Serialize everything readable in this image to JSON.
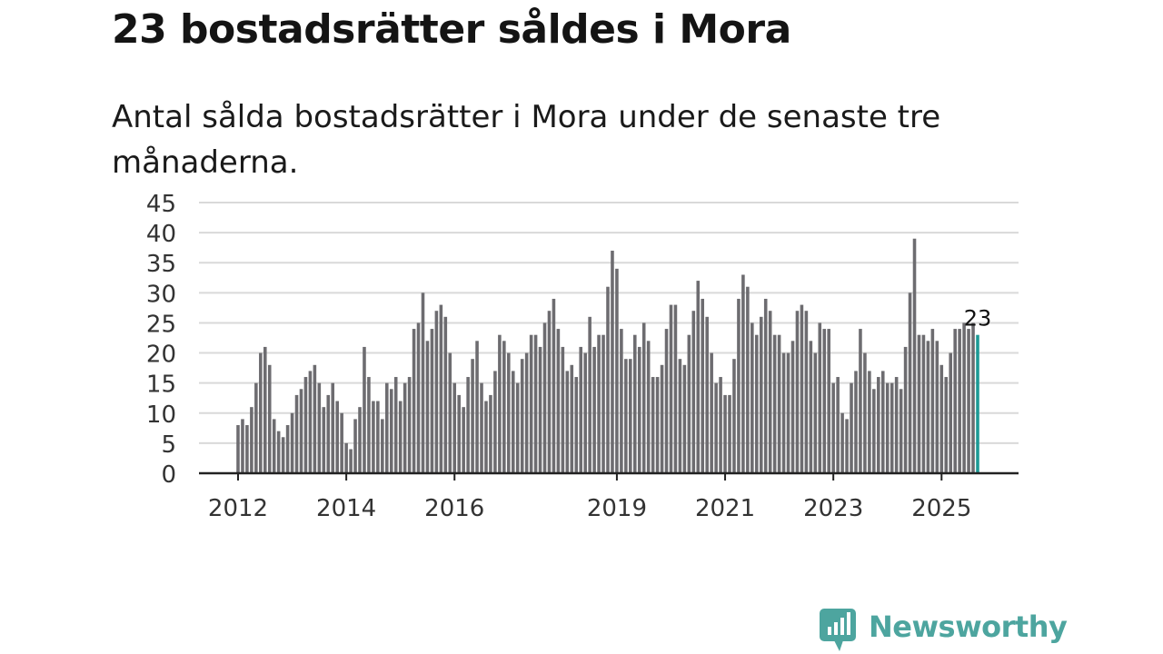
{
  "header": {
    "title": "23 bostadsrätter såldes i Mora",
    "subtitle": "Antal sålda bostadsrätter i Mora under de senaste tre månaderna."
  },
  "colors": {
    "bar": "#6d6c70",
    "highlight": "#1c9a96",
    "grid": "#d9d9d9",
    "axis": "#222222",
    "brand": "#4da59f"
  },
  "chart_data": {
    "type": "bar",
    "title": "23 bostadsrätter såldes i Mora",
    "subtitle": "Antal sålda bostadsrätter i Mora under de senaste tre månaderna.",
    "xlabel": "",
    "ylabel": "",
    "ylim": [
      0,
      45
    ],
    "yticks": [
      "0",
      "5",
      "10",
      "15",
      "20",
      "25",
      "30",
      "35",
      "40",
      "45"
    ],
    "grid": true,
    "x_start": "2012-01",
    "frequency": "monthly",
    "xticks": [
      {
        "label": "2012",
        "index": 0
      },
      {
        "label": "2014",
        "index": 24
      },
      {
        "label": "2016",
        "index": 48
      },
      {
        "label": "2019",
        "index": 84
      },
      {
        "label": "2021",
        "index": 108
      },
      {
        "label": "2023",
        "index": 132
      },
      {
        "label": "2025",
        "index": 156
      }
    ],
    "highlight_label": "23",
    "values": [
      8,
      9,
      8,
      11,
      15,
      20,
      21,
      18,
      9,
      7,
      6,
      8,
      10,
      13,
      14,
      16,
      17,
      18,
      15,
      11,
      13,
      15,
      12,
      10,
      5,
      4,
      9,
      11,
      21,
      16,
      12,
      12,
      9,
      15,
      14,
      16,
      12,
      15,
      16,
      24,
      25,
      30,
      22,
      24,
      27,
      28,
      26,
      20,
      15,
      13,
      11,
      16,
      19,
      22,
      15,
      12,
      13,
      17,
      23,
      22,
      20,
      17,
      15,
      19,
      20,
      23,
      23,
      21,
      25,
      27,
      29,
      24,
      21,
      17,
      18,
      16,
      21,
      20,
      26,
      21,
      23,
      23,
      31,
      37,
      34,
      24,
      19,
      19,
      23,
      21,
      25,
      22,
      16,
      16,
      18,
      24,
      28,
      28,
      19,
      18,
      23,
      27,
      32,
      29,
      26,
      20,
      15,
      16,
      13,
      13,
      19,
      29,
      33,
      31,
      25,
      23,
      26,
      29,
      27,
      23,
      23,
      20,
      20,
      22,
      27,
      28,
      27,
      22,
      20,
      25,
      24,
      24,
      15,
      16,
      10,
      9,
      15,
      17,
      24,
      20,
      17,
      14,
      16,
      17,
      15,
      15,
      16,
      14,
      21,
      30,
      39,
      23,
      23,
      22,
      24,
      22,
      18,
      16,
      20,
      24,
      24,
      25,
      24,
      25,
      23
    ]
  },
  "branding": {
    "logo_icon": "newsworthy-bar-chart-speech-bubble-icon",
    "logo_text": "Newsworthy"
  }
}
